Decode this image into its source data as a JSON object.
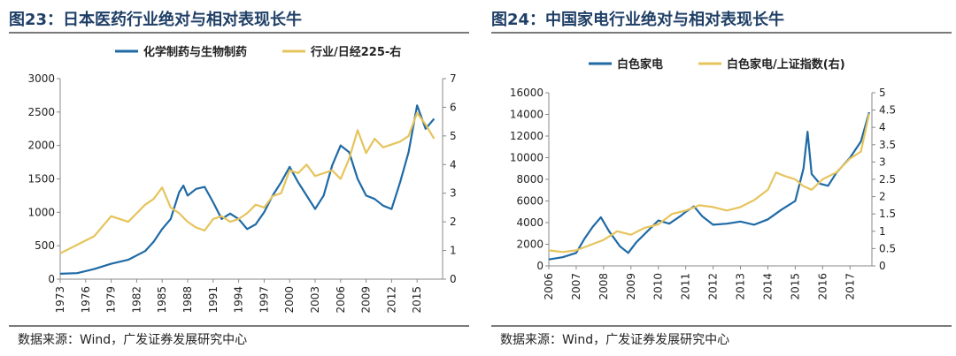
{
  "panels": [
    {
      "title": "图23：日本医药行业绝对与相对表现长牛",
      "source": "数据来源：Wind，广发证券发展研究中心"
    },
    {
      "title": "图24：中国家电行业绝对与相对表现长牛",
      "source": "数据来源：Wind，广发证券发展研究中心"
    }
  ],
  "colors": {
    "blue": "#1f6aa5",
    "gold": "#e6c45c",
    "title": "#1f3f66"
  },
  "chart_data": [
    {
      "type": "line",
      "title": "",
      "x_ticks": [
        "1973",
        "1976",
        "1979",
        "1982",
        "1985",
        "1988",
        "1991",
        "1994",
        "1997",
        "2000",
        "2003",
        "2006",
        "2009",
        "2012",
        "2015"
      ],
      "xlim": [
        1973,
        2018
      ],
      "ylim_left": [
        0,
        3000
      ],
      "left_ticks": [
        0,
        500,
        1000,
        1500,
        2000,
        2500,
        3000
      ],
      "ylim_right": [
        0,
        7
      ],
      "right_ticks": [
        0,
        1,
        2,
        3,
        4,
        5,
        6,
        7
      ],
      "legend_position": "top",
      "series": [
        {
          "name": "化学制药与生物制药",
          "axis": "left",
          "color": "#1f6aa5",
          "points": [
            [
              1973,
              80
            ],
            [
              1975,
              90
            ],
            [
              1977,
              150
            ],
            [
              1979,
              230
            ],
            [
              1981,
              290
            ],
            [
              1983,
              420
            ],
            [
              1984,
              560
            ],
            [
              1985,
              750
            ],
            [
              1986,
              900
            ],
            [
              1987,
              1300
            ],
            [
              1987.5,
              1400
            ],
            [
              1988,
              1250
            ],
            [
              1989,
              1350
            ],
            [
              1990,
              1380
            ],
            [
              1991,
              1150
            ],
            [
              1992,
              900
            ],
            [
              1993,
              980
            ],
            [
              1994,
              900
            ],
            [
              1995,
              750
            ],
            [
              1996,
              820
            ],
            [
              1997,
              1000
            ],
            [
              1998,
              1250
            ],
            [
              1999,
              1450
            ],
            [
              2000,
              1680
            ],
            [
              2001,
              1450
            ],
            [
              2002,
              1250
            ],
            [
              2003,
              1050
            ],
            [
              2004,
              1250
            ],
            [
              2005,
              1700
            ],
            [
              2006,
              2000
            ],
            [
              2007,
              1900
            ],
            [
              2008,
              1500
            ],
            [
              2009,
              1250
            ],
            [
              2010,
              1200
            ],
            [
              2011,
              1100
            ],
            [
              2012,
              1050
            ],
            [
              2013,
              1450
            ],
            [
              2014,
              1900
            ],
            [
              2015,
              2600
            ],
            [
              2016,
              2250
            ],
            [
              2017,
              2400
            ]
          ]
        },
        {
          "name": "行业/日经225-右",
          "axis": "right",
          "color": "#e6c45c",
          "points": [
            [
              1973,
              0.9
            ],
            [
              1975,
              1.2
            ],
            [
              1977,
              1.5
            ],
            [
              1979,
              2.2
            ],
            [
              1981,
              2.0
            ],
            [
              1983,
              2.6
            ],
            [
              1984,
              2.8
            ],
            [
              1985,
              3.2
            ],
            [
              1986,
              2.5
            ],
            [
              1987,
              2.3
            ],
            [
              1988,
              2.0
            ],
            [
              1989,
              1.8
            ],
            [
              1990,
              1.7
            ],
            [
              1991,
              2.1
            ],
            [
              1992,
              2.2
            ],
            [
              1993,
              2.0
            ],
            [
              1994,
              2.1
            ],
            [
              1995,
              2.3
            ],
            [
              1996,
              2.6
            ],
            [
              1997,
              2.5
            ],
            [
              1998,
              2.9
            ],
            [
              1999,
              3.0
            ],
            [
              2000,
              3.8
            ],
            [
              2001,
              3.7
            ],
            [
              2002,
              4.0
            ],
            [
              2003,
              3.6
            ],
            [
              2004,
              3.7
            ],
            [
              2005,
              3.8
            ],
            [
              2006,
              3.5
            ],
            [
              2007,
              4.2
            ],
            [
              2008,
              5.2
            ],
            [
              2009,
              4.4
            ],
            [
              2010,
              4.9
            ],
            [
              2011,
              4.6
            ],
            [
              2012,
              4.7
            ],
            [
              2013,
              4.8
            ],
            [
              2014,
              5.0
            ],
            [
              2015,
              5.8
            ],
            [
              2016,
              5.4
            ],
            [
              2017,
              4.9
            ]
          ]
        }
      ]
    },
    {
      "type": "line",
      "title": "",
      "x_ticks": [
        "2006",
        "2007",
        "2008",
        "2009",
        "2010",
        "2011",
        "2012",
        "2013",
        "2014",
        "2015",
        "2016",
        "2017"
      ],
      "xlim": [
        2006,
        2017.8
      ],
      "ylim_left": [
        0,
        16000
      ],
      "left_ticks": [
        0,
        2000,
        4000,
        6000,
        8000,
        10000,
        12000,
        14000,
        16000
      ],
      "ylim_right": [
        0,
        5
      ],
      "right_ticks": [
        0,
        0.5,
        1,
        1.5,
        2,
        2.5,
        3,
        3.5,
        4,
        4.5,
        5
      ],
      "legend_position": "top",
      "series": [
        {
          "name": "白色家电",
          "axis": "left",
          "color": "#1f6aa5",
          "points": [
            [
              2006,
              600
            ],
            [
              2006.5,
              800
            ],
            [
              2007,
              1200
            ],
            [
              2007.3,
              2500
            ],
            [
              2007.6,
              3600
            ],
            [
              2007.9,
              4500
            ],
            [
              2008.2,
              3200
            ],
            [
              2008.6,
              1800
            ],
            [
              2008.9,
              1200
            ],
            [
              2009.2,
              2200
            ],
            [
              2009.6,
              3200
            ],
            [
              2010,
              4200
            ],
            [
              2010.4,
              3900
            ],
            [
              2010.8,
              4600
            ],
            [
              2011,
              5000
            ],
            [
              2011.3,
              5500
            ],
            [
              2011.6,
              4600
            ],
            [
              2012,
              3800
            ],
            [
              2012.5,
              3900
            ],
            [
              2013,
              4100
            ],
            [
              2013.5,
              3800
            ],
            [
              2014,
              4300
            ],
            [
              2014.5,
              5200
            ],
            [
              2015,
              6000
            ],
            [
              2015.3,
              9000
            ],
            [
              2015.45,
              12400
            ],
            [
              2015.6,
              8500
            ],
            [
              2015.9,
              7600
            ],
            [
              2016.2,
              7400
            ],
            [
              2016.5,
              8600
            ],
            [
              2017,
              10000
            ],
            [
              2017.4,
              11500
            ],
            [
              2017.7,
              14200
            ]
          ]
        },
        {
          "name": "白色家电/上证指数(右)",
          "axis": "right",
          "color": "#e6c45c",
          "points": [
            [
              2006,
              0.45
            ],
            [
              2006.5,
              0.4
            ],
            [
              2007,
              0.45
            ],
            [
              2007.5,
              0.6
            ],
            [
              2008,
              0.75
            ],
            [
              2008.5,
              1.0
            ],
            [
              2009,
              0.9
            ],
            [
              2009.5,
              1.1
            ],
            [
              2010,
              1.2
            ],
            [
              2010.5,
              1.5
            ],
            [
              2011,
              1.6
            ],
            [
              2011.5,
              1.75
            ],
            [
              2012,
              1.7
            ],
            [
              2012.5,
              1.6
            ],
            [
              2013,
              1.7
            ],
            [
              2013.5,
              1.9
            ],
            [
              2014,
              2.2
            ],
            [
              2014.3,
              2.7
            ],
            [
              2014.6,
              2.6
            ],
            [
              2015,
              2.5
            ],
            [
              2015.3,
              2.3
            ],
            [
              2015.6,
              2.2
            ],
            [
              2016,
              2.5
            ],
            [
              2016.5,
              2.7
            ],
            [
              2017,
              3.1
            ],
            [
              2017.4,
              3.3
            ],
            [
              2017.7,
              4.4
            ]
          ]
        }
      ]
    }
  ]
}
